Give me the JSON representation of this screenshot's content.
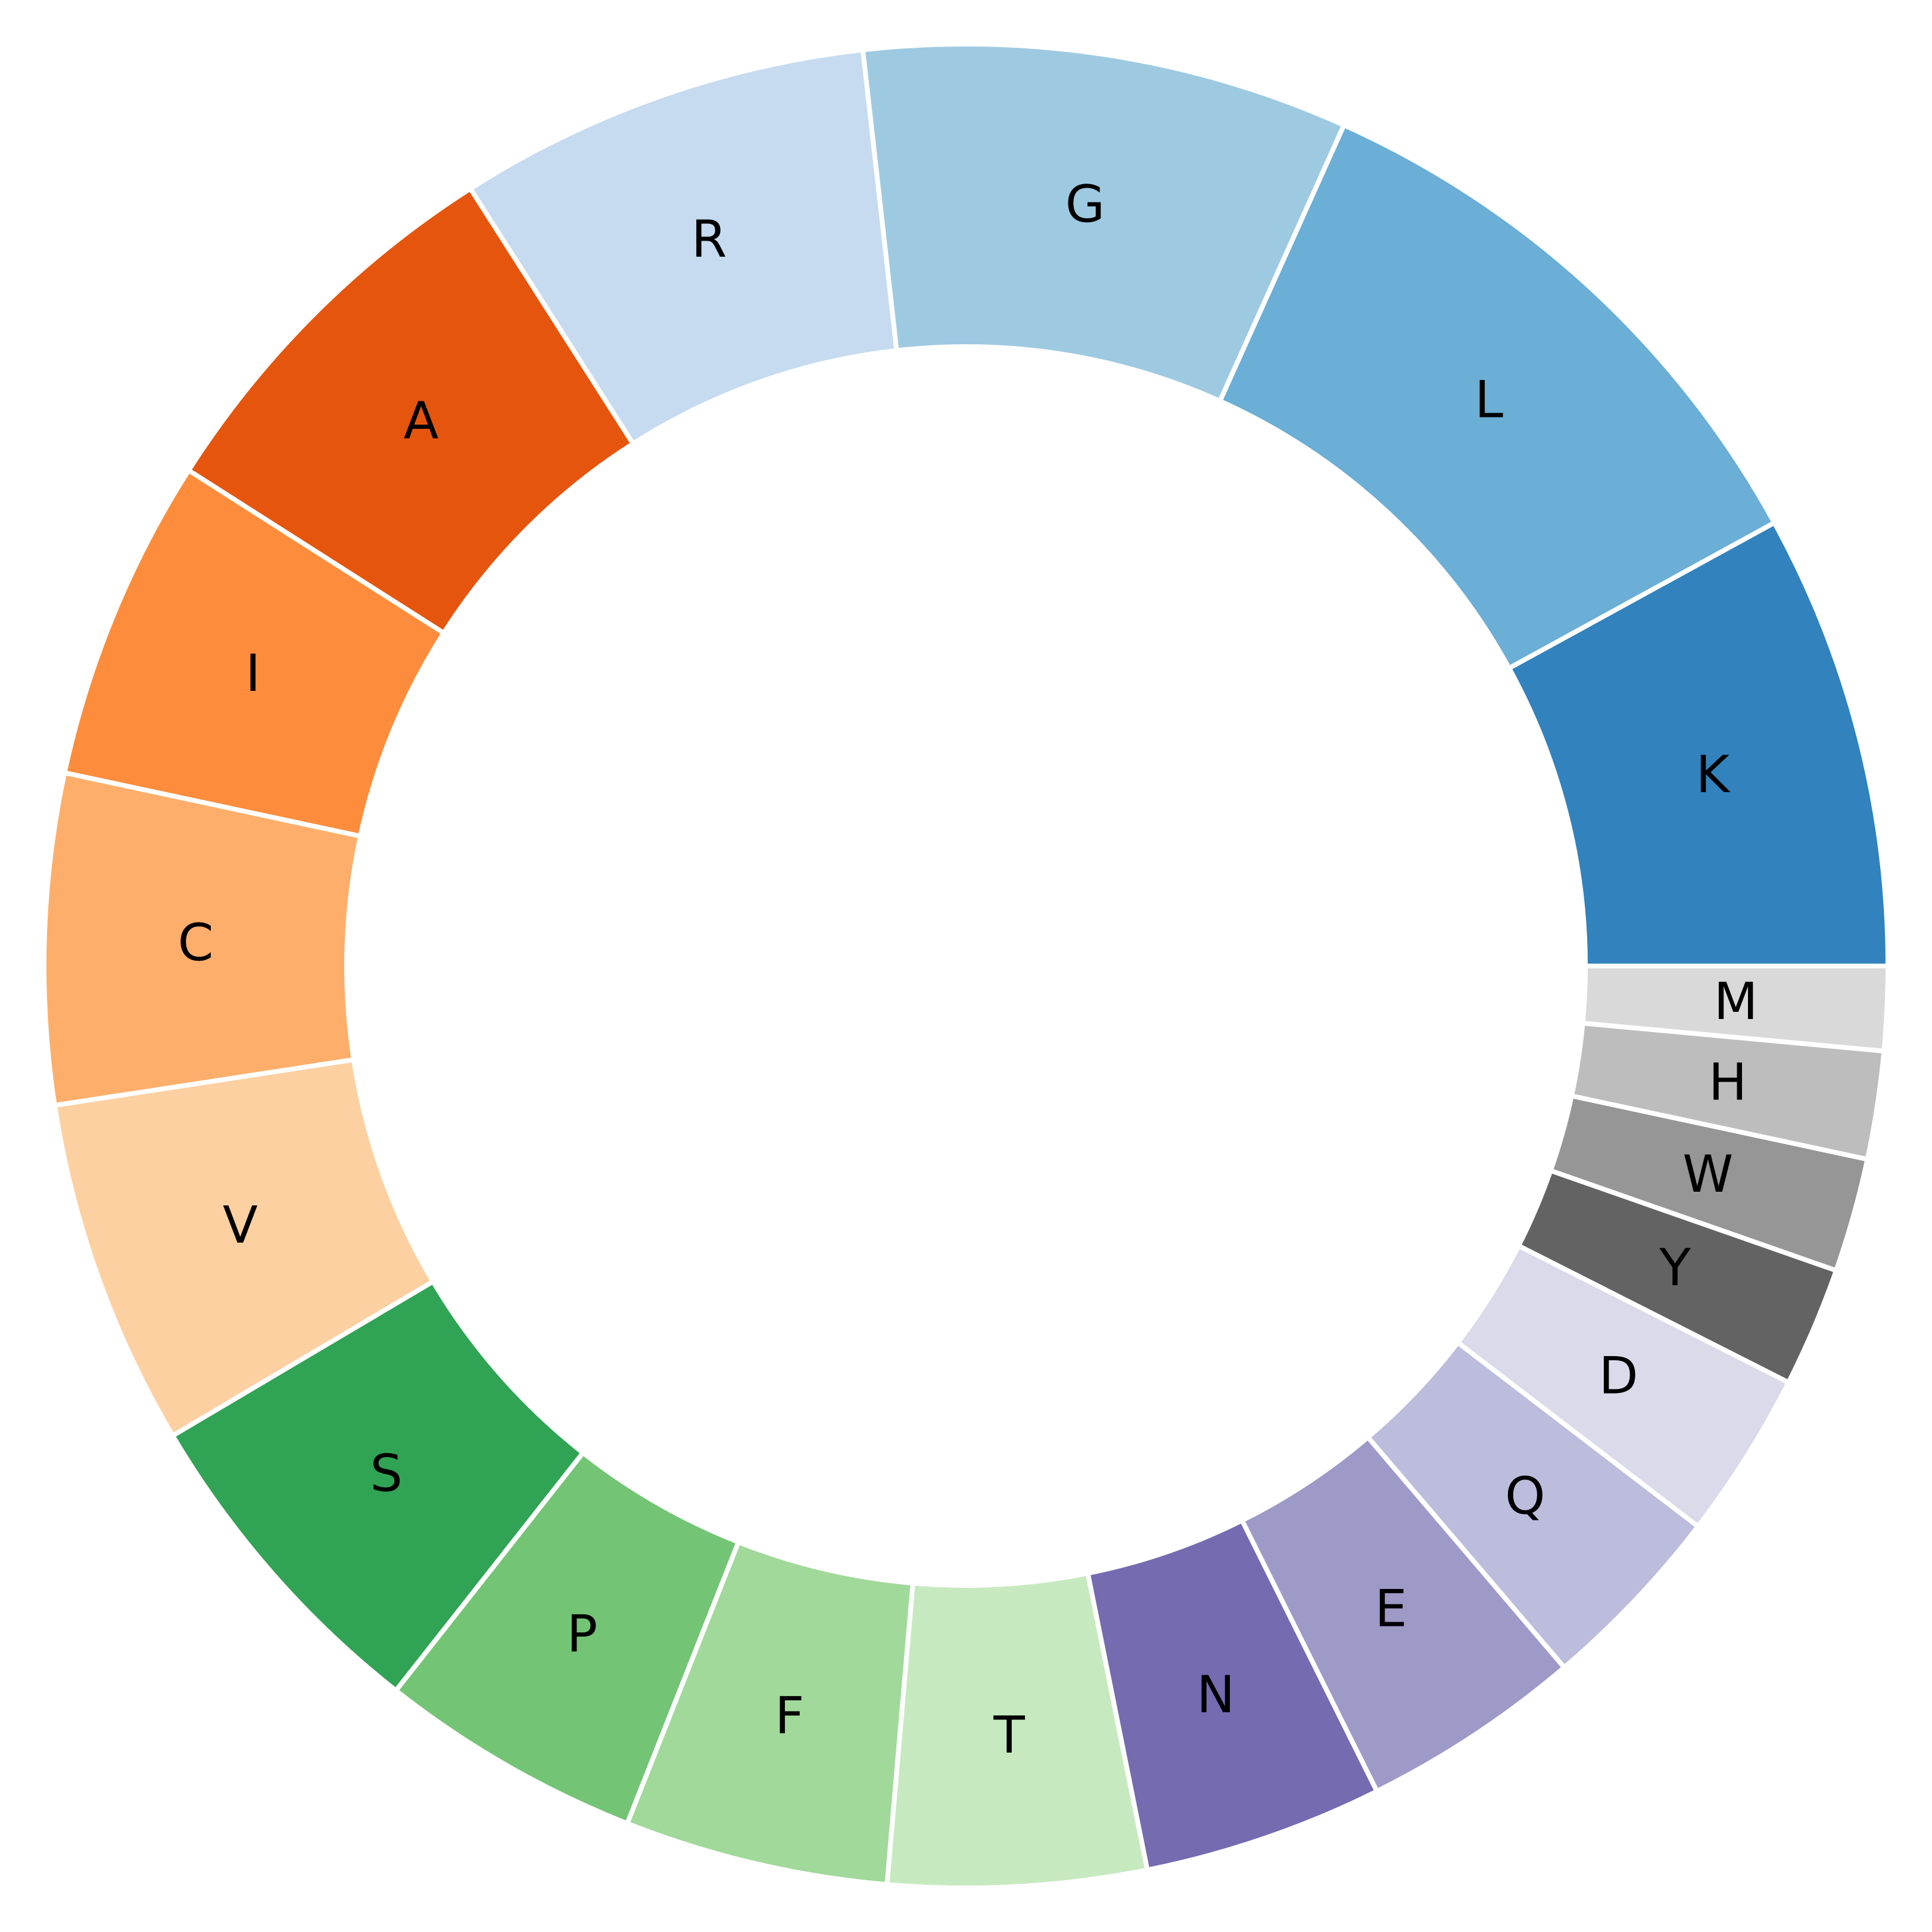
{
  "chart_data": {
    "type": "pie",
    "donut": true,
    "legend": "none",
    "grid": false,
    "slices": [
      {
        "label": "K",
        "value": 7.6,
        "color": "#3182bd"
      },
      {
        "label": "L",
        "value": 9.8,
        "color": "#6baed6"
      },
      {
        "label": "G",
        "value": 8.1,
        "color": "#9ecae1"
      },
      {
        "label": "R",
        "value": 6.9,
        "color": "#c6dbef"
      },
      {
        "label": "A",
        "value": 6.6,
        "color": "#e6550d"
      },
      {
        "label": "I",
        "value": 5.4,
        "color": "#fd8d3c"
      },
      {
        "label": "C",
        "value": 5.5,
        "color": "#fdae6b"
      },
      {
        "label": "V",
        "value": 5.8,
        "color": "#fdd0a2"
      },
      {
        "label": "S",
        "value": 5.6,
        "color": "#31a354"
      },
      {
        "label": "P",
        "value": 4.4,
        "color": "#74c476"
      },
      {
        "label": "F",
        "value": 4.4,
        "color": "#a1d99b"
      },
      {
        "label": "T",
        "value": 4.3,
        "color": "#c7e9c0"
      },
      {
        "label": "N",
        "value": 4.0,
        "color": "#756bb1"
      },
      {
        "label": "E",
        "value": 3.7,
        "color": "#9e9ac8"
      },
      {
        "label": "Q",
        "value": 3.2,
        "color": "#bcbddc"
      },
      {
        "label": "D",
        "value": 2.8,
        "color": "#dadaeb"
      },
      {
        "label": "Y",
        "value": 2.0,
        "color": "#636363"
      },
      {
        "label": "W",
        "value": 1.9,
        "color": "#969696"
      },
      {
        "label": "H",
        "value": 1.8,
        "color": "#bdbdbd"
      },
      {
        "label": "M",
        "value": 1.4,
        "color": "#d9d9d9"
      }
    ]
  }
}
